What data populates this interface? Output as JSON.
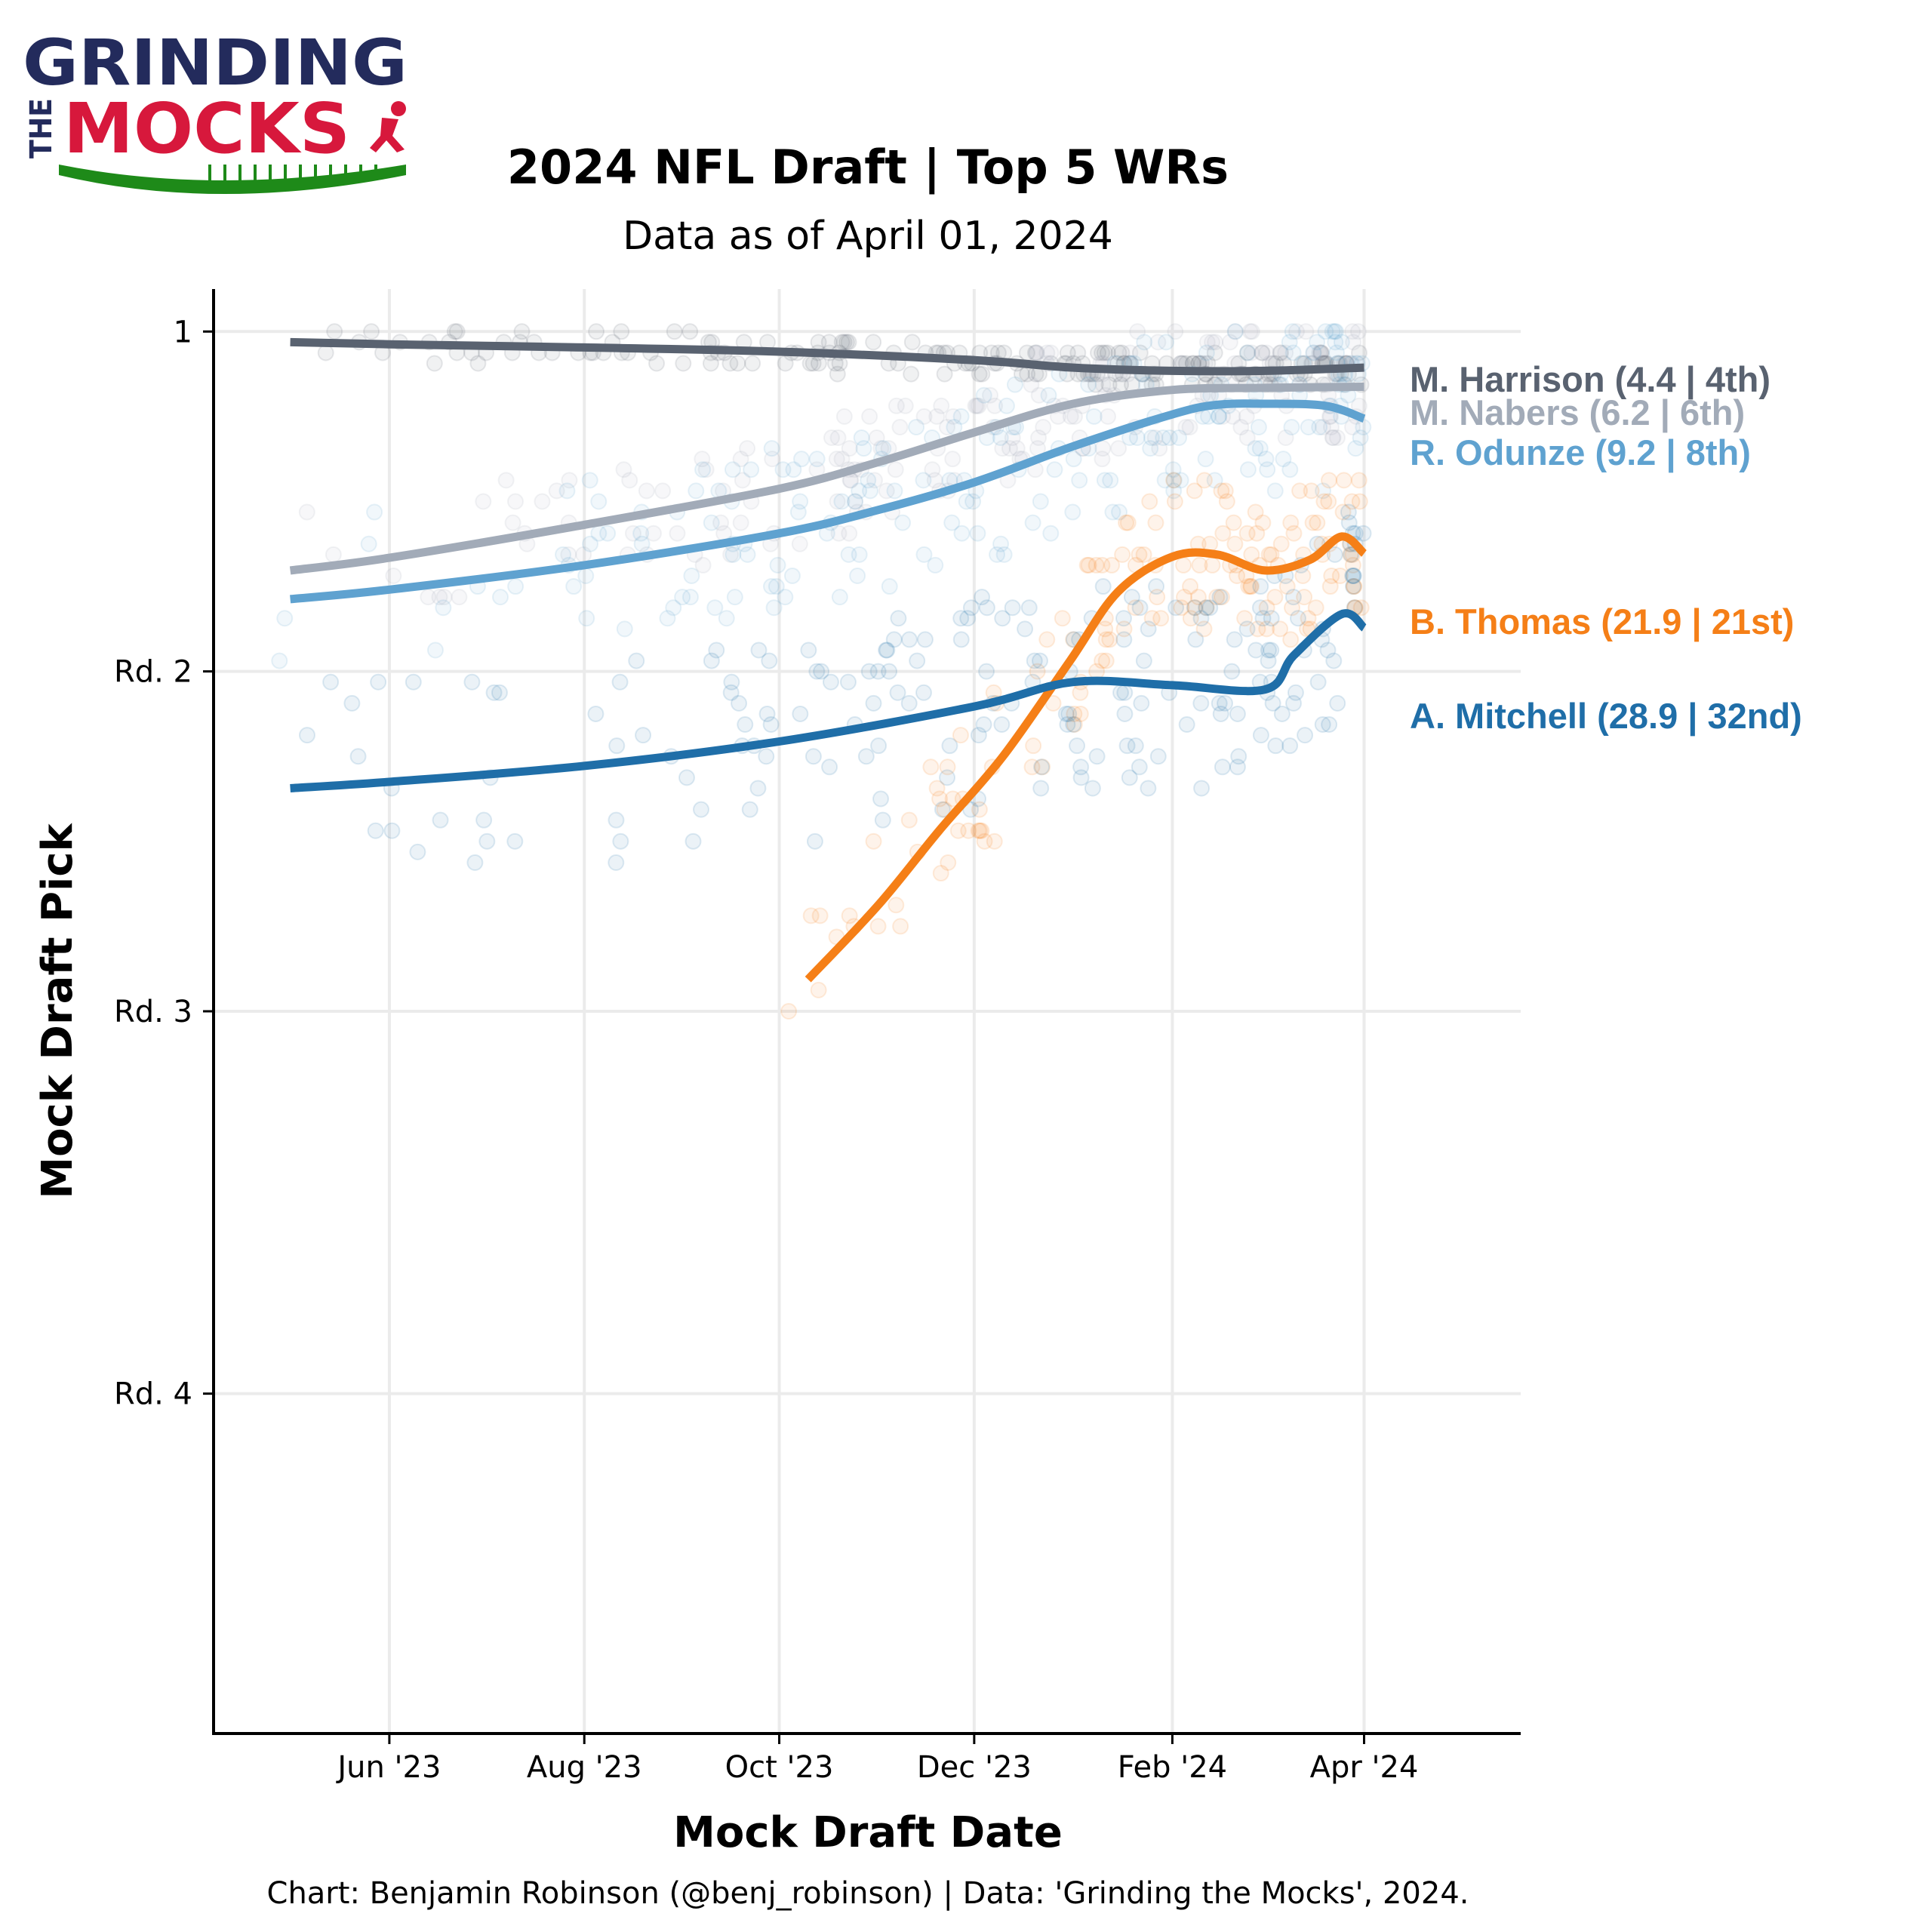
{
  "logo": {
    "word_top": "GRINDING",
    "word_side": "THE",
    "word_main": "MOCKS",
    "colors": {
      "navy": "#232b5c",
      "red": "#d7183c",
      "green": "#1e8a19"
    }
  },
  "chart_data": {
    "type": "line",
    "title": "2024 NFL Draft | Top 5 WRs",
    "subtitle": "Data as of April 01, 2024",
    "xlabel": "Mock Draft Date",
    "ylabel": "Mock Draft Pick",
    "caption": "Chart: Benjamin Robinson (@benj_robinson) | Data: 'Grinding the Mocks', 2024.",
    "x_range": [
      "2023-04-07",
      "2024-05-20"
    ],
    "y_range": [
      -3,
      133
    ],
    "y_reversed": true,
    "grid": true,
    "x_ticks": [
      {
        "date": "2023-06-01",
        "label": "Jun '23"
      },
      {
        "date": "2023-08-01",
        "label": "Aug '23"
      },
      {
        "date": "2023-10-01",
        "label": "Oct '23"
      },
      {
        "date": "2023-12-01",
        "label": "Dec '23"
      },
      {
        "date": "2024-02-01",
        "label": "Feb '24"
      },
      {
        "date": "2024-04-01",
        "label": "Apr '24"
      }
    ],
    "y_ticks": [
      {
        "pick": 1,
        "label": "1"
      },
      {
        "pick": 33,
        "label": "Rd. 2"
      },
      {
        "pick": 65,
        "label": "Rd. 3"
      },
      {
        "pick": 101,
        "label": "Rd. 4"
      }
    ],
    "series": [
      {
        "name": "M. Harrison",
        "label": "M. Harrison (4.4 | 4th)",
        "color": "#596270",
        "x": [
          "2023-05-01",
          "2023-06-01",
          "2023-08-01",
          "2023-10-01",
          "2023-12-01",
          "2024-01-01",
          "2024-02-01",
          "2024-03-01",
          "2024-04-01"
        ],
        "y": [
          2.0,
          2.2,
          2.5,
          2.9,
          3.7,
          4.4,
          4.7,
          4.7,
          4.4
        ]
      },
      {
        "name": "M. Nabers",
        "label": "M. Nabers (6.2 | 6th)",
        "color": "#a2abb8",
        "x": [
          "2023-05-01",
          "2023-06-01",
          "2023-08-01",
          "2023-10-01",
          "2023-11-01",
          "2023-12-01",
          "2024-01-01",
          "2024-02-01",
          "2024-03-01",
          "2024-04-01"
        ],
        "y": [
          23.5,
          22.3,
          19.2,
          15.8,
          13.3,
          10.5,
          7.8,
          6.5,
          6.3,
          6.2
        ]
      },
      {
        "name": "R. Odunze",
        "label": "R. Odunze (9.2 | 8th)",
        "color": "#5fa2d0",
        "x": [
          "2023-05-01",
          "2023-06-01",
          "2023-08-01",
          "2023-10-01",
          "2023-11-01",
          "2023-12-01",
          "2024-01-01",
          "2024-02-01",
          "2024-02-15",
          "2024-03-01",
          "2024-03-20",
          "2024-04-01"
        ],
        "y": [
          26.2,
          25.3,
          23.0,
          20.0,
          17.8,
          15.2,
          11.8,
          8.8,
          7.9,
          7.8,
          8.0,
          9.2
        ]
      },
      {
        "name": "B. Thomas",
        "label": "B. Thomas (21.9 | 21st)",
        "color": "#f57f17",
        "x": [
          "2023-10-10",
          "2023-11-01",
          "2023-11-20",
          "2023-12-10",
          "2023-12-31",
          "2024-01-15",
          "2024-02-01",
          "2024-02-15",
          "2024-03-01",
          "2024-03-15",
          "2024-03-25",
          "2024-04-01"
        ],
        "y": [
          62.0,
          55.0,
          48.0,
          41.0,
          32.0,
          25.5,
          22.2,
          22.0,
          23.5,
          22.5,
          20.3,
          21.9
        ]
      },
      {
        "name": "A. Mitchell",
        "label": "A. Mitchell (28.9 | 32nd)",
        "color": "#1f6ea8",
        "x": [
          "2023-05-01",
          "2023-06-01",
          "2023-08-01",
          "2023-10-01",
          "2023-12-01",
          "2024-01-01",
          "2024-02-01",
          "2024-03-01",
          "2024-03-10",
          "2024-03-25",
          "2024-04-01"
        ],
        "y": [
          44.0,
          43.4,
          41.9,
          39.6,
          36.3,
          34.0,
          34.3,
          34.7,
          31.5,
          27.6,
          28.9
        ]
      }
    ]
  }
}
